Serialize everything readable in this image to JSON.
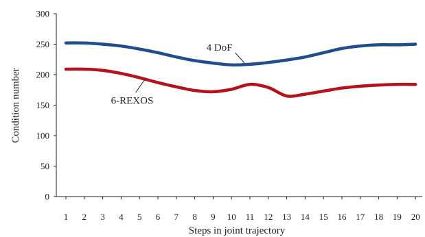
{
  "chart_data": {
    "type": "line",
    "title": "",
    "xlabel": "Steps in joint trajectory",
    "ylabel": "Condition number",
    "x": [
      1,
      2,
      3,
      4,
      5,
      6,
      7,
      8,
      9,
      10,
      11,
      12,
      13,
      14,
      15,
      16,
      17,
      18,
      19,
      20
    ],
    "ylim": [
      0,
      300
    ],
    "yticks": [
      0,
      50,
      100,
      150,
      200,
      250,
      300
    ],
    "grid": false,
    "legend": "none",
    "series": [
      {
        "name": "4 DoF",
        "color": "#1f4e8c",
        "values": [
          252,
          252,
          250,
          247,
          242,
          236,
          229,
          223,
          219,
          216,
          217,
          220,
          224,
          229,
          236,
          243,
          247,
          249,
          249,
          250
        ]
      },
      {
        "name": "6-REXOS",
        "color": "#b5121b",
        "values": [
          209,
          209,
          207,
          202,
          195,
          187,
          180,
          174,
          172,
          176,
          184,
          179,
          165,
          168,
          173,
          178,
          181,
          183,
          184,
          184
        ]
      }
    ],
    "annotations": [
      {
        "text": "4 DoF",
        "series": 0
      },
      {
        "text": "6-REXOS",
        "series": 1
      }
    ]
  }
}
